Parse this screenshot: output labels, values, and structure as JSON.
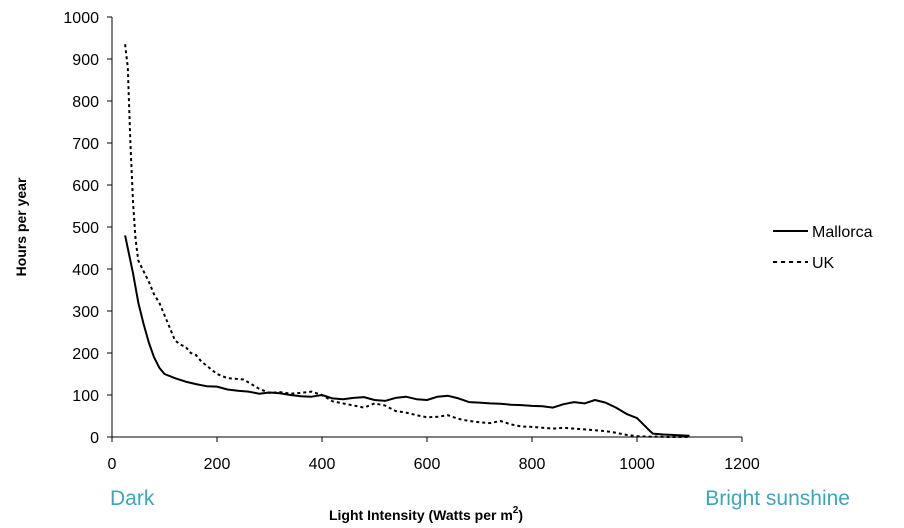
{
  "chart_data": {
    "type": "line",
    "title": "",
    "xlabel": "Light Intensity (Watts per m",
    "xlabel_superscript": "2",
    "xlabel_suffix": ")",
    "ylabel": "Hours per year",
    "xlim": [
      0,
      1200
    ],
    "ylim": [
      0,
      1000
    ],
    "x_ticks": [
      0,
      200,
      400,
      600,
      800,
      1000,
      1200
    ],
    "y_ticks": [
      0,
      100,
      200,
      300,
      400,
      500,
      600,
      700,
      800,
      900,
      1000
    ],
    "grid": false,
    "legend_position": "right",
    "annotations": {
      "left": "Dark",
      "right": "Bright sunshine",
      "color": "#3aa6c0"
    },
    "series": [
      {
        "name": "Mallorca",
        "style": "solid",
        "color": "#000000",
        "points": [
          [
            25,
            480
          ],
          [
            40,
            390
          ],
          [
            50,
            320
          ],
          [
            60,
            270
          ],
          [
            70,
            225
          ],
          [
            80,
            190
          ],
          [
            90,
            165
          ],
          [
            100,
            150
          ],
          [
            120,
            140
          ],
          [
            140,
            132
          ],
          [
            160,
            126
          ],
          [
            180,
            121
          ],
          [
            200,
            120
          ],
          [
            220,
            113
          ],
          [
            240,
            110
          ],
          [
            260,
            108
          ],
          [
            280,
            103
          ],
          [
            300,
            106
          ],
          [
            320,
            104
          ],
          [
            340,
            100
          ],
          [
            360,
            97
          ],
          [
            380,
            96
          ],
          [
            400,
            100
          ],
          [
            420,
            92
          ],
          [
            440,
            90
          ],
          [
            460,
            93
          ],
          [
            480,
            95
          ],
          [
            500,
            88
          ],
          [
            520,
            86
          ],
          [
            540,
            93
          ],
          [
            560,
            96
          ],
          [
            580,
            90
          ],
          [
            600,
            88
          ],
          [
            620,
            96
          ],
          [
            640,
            98
          ],
          [
            660,
            92
          ],
          [
            680,
            83
          ],
          [
            700,
            82
          ],
          [
            720,
            80
          ],
          [
            740,
            79
          ],
          [
            760,
            77
          ],
          [
            780,
            76
          ],
          [
            800,
            74
          ],
          [
            820,
            73
          ],
          [
            840,
            70
          ],
          [
            860,
            78
          ],
          [
            880,
            83
          ],
          [
            900,
            80
          ],
          [
            920,
            88
          ],
          [
            940,
            82
          ],
          [
            960,
            70
          ],
          [
            980,
            55
          ],
          [
            1000,
            45
          ],
          [
            1020,
            20
          ],
          [
            1030,
            8
          ],
          [
            1050,
            6
          ],
          [
            1080,
            4
          ],
          [
            1100,
            3
          ]
        ]
      },
      {
        "name": "UK",
        "style": "dashed",
        "color": "#000000",
        "points": [
          [
            25,
            935
          ],
          [
            30,
            880
          ],
          [
            35,
            700
          ],
          [
            40,
            560
          ],
          [
            45,
            470
          ],
          [
            50,
            420
          ],
          [
            60,
            395
          ],
          [
            70,
            370
          ],
          [
            80,
            340
          ],
          [
            90,
            320
          ],
          [
            100,
            290
          ],
          [
            110,
            260
          ],
          [
            120,
            230
          ],
          [
            130,
            220
          ],
          [
            140,
            215
          ],
          [
            150,
            200
          ],
          [
            160,
            195
          ],
          [
            170,
            180
          ],
          [
            180,
            170
          ],
          [
            190,
            160
          ],
          [
            200,
            150
          ],
          [
            220,
            140
          ],
          [
            240,
            138
          ],
          [
            250,
            137
          ],
          [
            260,
            130
          ],
          [
            280,
            115
          ],
          [
            300,
            105
          ],
          [
            320,
            107
          ],
          [
            340,
            103
          ],
          [
            360,
            105
          ],
          [
            380,
            108
          ],
          [
            400,
            100
          ],
          [
            420,
            85
          ],
          [
            440,
            80
          ],
          [
            460,
            75
          ],
          [
            480,
            70
          ],
          [
            500,
            80
          ],
          [
            520,
            75
          ],
          [
            540,
            62
          ],
          [
            560,
            58
          ],
          [
            580,
            52
          ],
          [
            600,
            47
          ],
          [
            620,
            48
          ],
          [
            640,
            52
          ],
          [
            660,
            43
          ],
          [
            680,
            38
          ],
          [
            700,
            35
          ],
          [
            720,
            33
          ],
          [
            740,
            38
          ],
          [
            760,
            30
          ],
          [
            780,
            25
          ],
          [
            800,
            24
          ],
          [
            820,
            22
          ],
          [
            840,
            20
          ],
          [
            860,
            22
          ],
          [
            880,
            20
          ],
          [
            900,
            18
          ],
          [
            920,
            16
          ],
          [
            940,
            14
          ],
          [
            960,
            10
          ],
          [
            980,
            5
          ],
          [
            1000,
            2
          ],
          [
            1020,
            1
          ],
          [
            1040,
            1
          ],
          [
            1060,
            0
          ],
          [
            1080,
            0
          ],
          [
            1100,
            0
          ]
        ]
      }
    ]
  }
}
